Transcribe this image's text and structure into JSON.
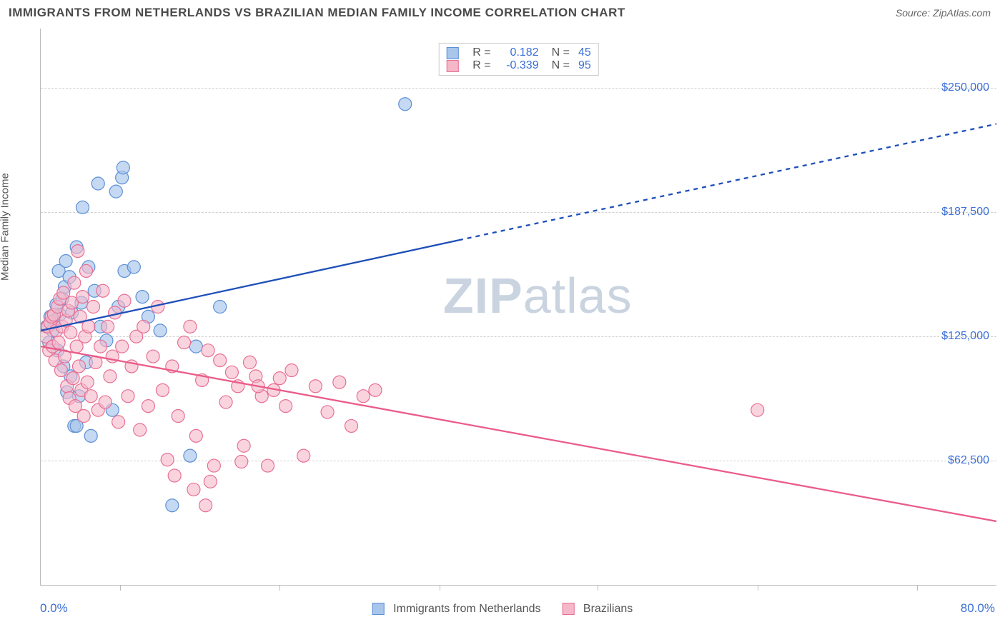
{
  "header": {
    "title": "IMMIGRANTS FROM NETHERLANDS VS BRAZILIAN MEDIAN FAMILY INCOME CORRELATION CHART",
    "source_prefix": "Source: ",
    "source": "ZipAtlas.com"
  },
  "watermark": {
    "zip": "ZIP",
    "atlas": "atlas"
  },
  "chart": {
    "type": "scatter",
    "ylabel": "Median Family Income",
    "xlim": [
      0,
      80
    ],
    "ylim": [
      0,
      280000
    ],
    "x_axis": {
      "left_label": "0.0%",
      "right_label": "80.0%",
      "tick_positions_pct": [
        8.3,
        25,
        41.7,
        58.3,
        75,
        91.7
      ]
    },
    "y_gridlines": [
      {
        "value": 62500,
        "label": "$62,500"
      },
      {
        "value": 125000,
        "label": "$125,000"
      },
      {
        "value": 187500,
        "label": "$187,500"
      },
      {
        "value": 250000,
        "label": "$250,000"
      }
    ],
    "series": [
      {
        "id": "netherlands",
        "label": "Immigrants from Netherlands",
        "fill": "#a8c5eb",
        "stroke": "#5b8fd6",
        "marker_radius": 9,
        "marker_opacity": 0.65,
        "R": "0.182",
        "N": "45",
        "regression": {
          "x1": 0,
          "y1": 128000,
          "x2": 80,
          "y2": 232000,
          "solid_until_x": 35,
          "color": "#1e4fb8",
          "width": 2.3,
          "dash": "6,6"
        },
        "points": [
          [
            0.5,
            130000
          ],
          [
            0.7,
            122000
          ],
          [
            0.8,
            135000
          ],
          [
            1.0,
            128000
          ],
          [
            1.1,
            133000
          ],
          [
            1.3,
            141000
          ],
          [
            1.4,
            118000
          ],
          [
            1.5,
            158000
          ],
          [
            1.6,
            136000
          ],
          [
            1.8,
            144000
          ],
          [
            1.9,
            110000
          ],
          [
            2.0,
            150000
          ],
          [
            2.1,
            163000
          ],
          [
            2.2,
            97000
          ],
          [
            2.4,
            155000
          ],
          [
            2.5,
            105000
          ],
          [
            2.6,
            137000
          ],
          [
            2.8,
            80000
          ],
          [
            3.0,
            170000
          ],
          [
            3.2,
            95000
          ],
          [
            3.4,
            142000
          ],
          [
            3.5,
            190000
          ],
          [
            3.8,
            112000
          ],
          [
            4.0,
            160000
          ],
          [
            4.2,
            75000
          ],
          [
            4.5,
            148000
          ],
          [
            4.8,
            202000
          ],
          [
            5.0,
            130000
          ],
          [
            5.5,
            123000
          ],
          [
            6.0,
            88000
          ],
          [
            6.3,
            198000
          ],
          [
            6.5,
            140000
          ],
          [
            7.0,
            158000
          ],
          [
            7.8,
            160000
          ],
          [
            8.5,
            145000
          ],
          [
            9.0,
            135000
          ],
          [
            10.0,
            128000
          ],
          [
            11.0,
            40000
          ],
          [
            12.5,
            65000
          ],
          [
            13.0,
            120000
          ],
          [
            15.0,
            140000
          ],
          [
            6.8,
            205000
          ],
          [
            6.9,
            210000
          ],
          [
            3.0,
            80000
          ],
          [
            30.5,
            242000
          ]
        ]
      },
      {
        "id": "brazilians",
        "label": "Brazilians",
        "fill": "#f5b8c9",
        "stroke": "#e86f93",
        "marker_radius": 9,
        "marker_opacity": 0.6,
        "R": "-0.339",
        "N": "95",
        "regression": {
          "x1": 0,
          "y1": 120000,
          "x2": 80,
          "y2": 32000,
          "solid_until_x": 80,
          "color": "#ea5c89",
          "width": 2.3,
          "dash": ""
        },
        "points": [
          [
            0.4,
            125000
          ],
          [
            0.6,
            130000
          ],
          [
            0.7,
            118000
          ],
          [
            0.8,
            132000
          ],
          [
            0.9,
            135000
          ],
          [
            1.0,
            120000
          ],
          [
            1.1,
            136000
          ],
          [
            1.2,
            113000
          ],
          [
            1.3,
            128000
          ],
          [
            1.4,
            140000
          ],
          [
            1.5,
            122000
          ],
          [
            1.6,
            144000
          ],
          [
            1.7,
            108000
          ],
          [
            1.8,
            130000
          ],
          [
            1.9,
            147000
          ],
          [
            2.0,
            115000
          ],
          [
            2.1,
            133000
          ],
          [
            2.2,
            100000
          ],
          [
            2.3,
            138000
          ],
          [
            2.4,
            94000
          ],
          [
            2.5,
            127000
          ],
          [
            2.6,
            142000
          ],
          [
            2.7,
            104000
          ],
          [
            2.8,
            152000
          ],
          [
            2.9,
            90000
          ],
          [
            3.0,
            120000
          ],
          [
            3.1,
            168000
          ],
          [
            3.2,
            110000
          ],
          [
            3.3,
            135000
          ],
          [
            3.4,
            98000
          ],
          [
            3.5,
            145000
          ],
          [
            3.6,
            85000
          ],
          [
            3.7,
            125000
          ],
          [
            3.8,
            158000
          ],
          [
            3.9,
            102000
          ],
          [
            4.0,
            130000
          ],
          [
            4.2,
            95000
          ],
          [
            4.4,
            140000
          ],
          [
            4.6,
            112000
          ],
          [
            4.8,
            88000
          ],
          [
            5.0,
            120000
          ],
          [
            5.2,
            148000
          ],
          [
            5.4,
            92000
          ],
          [
            5.6,
            130000
          ],
          [
            5.8,
            105000
          ],
          [
            6.0,
            115000
          ],
          [
            6.2,
            137000
          ],
          [
            6.5,
            82000
          ],
          [
            6.8,
            120000
          ],
          [
            7.0,
            143000
          ],
          [
            7.3,
            95000
          ],
          [
            7.6,
            110000
          ],
          [
            8.0,
            125000
          ],
          [
            8.3,
            78000
          ],
          [
            8.6,
            130000
          ],
          [
            9.0,
            90000
          ],
          [
            9.4,
            115000
          ],
          [
            9.8,
            140000
          ],
          [
            10.2,
            98000
          ],
          [
            10.6,
            63000
          ],
          [
            11.0,
            110000
          ],
          [
            11.5,
            85000
          ],
          [
            12.0,
            122000
          ],
          [
            12.5,
            130000
          ],
          [
            13.0,
            75000
          ],
          [
            13.5,
            103000
          ],
          [
            14.0,
            118000
          ],
          [
            14.5,
            60000
          ],
          [
            15.0,
            113000
          ],
          [
            15.5,
            92000
          ],
          [
            16.0,
            107000
          ],
          [
            16.5,
            100000
          ],
          [
            17.0,
            70000
          ],
          [
            17.5,
            112000
          ],
          [
            18.0,
            105000
          ],
          [
            18.5,
            95000
          ],
          [
            13.8,
            40000
          ],
          [
            19.0,
            60000
          ],
          [
            19.5,
            98000
          ],
          [
            20.0,
            104000
          ],
          [
            20.5,
            90000
          ],
          [
            21.0,
            108000
          ],
          [
            22.0,
            65000
          ],
          [
            23.0,
            100000
          ],
          [
            24.0,
            87000
          ],
          [
            25.0,
            102000
          ],
          [
            26.0,
            80000
          ],
          [
            27.0,
            95000
          ],
          [
            28.0,
            98000
          ],
          [
            18.2,
            100000
          ],
          [
            16.8,
            62000
          ],
          [
            11.2,
            55000
          ],
          [
            12.8,
            48000
          ],
          [
            14.2,
            52000
          ],
          [
            60.0,
            88000
          ]
        ]
      }
    ]
  }
}
